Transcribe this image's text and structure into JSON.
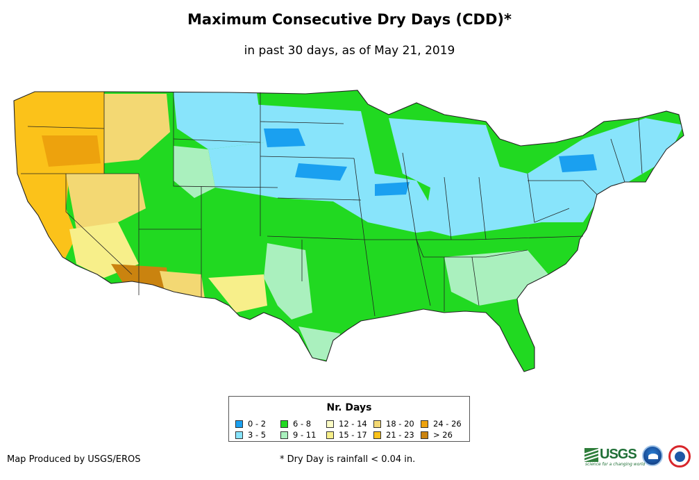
{
  "header": {
    "title": "Maximum Consecutive Dry Days (CDD)*",
    "subtitle": "in past 30 days, as of May 21, 2019"
  },
  "legend": {
    "title": "Nr. Days",
    "items": [
      {
        "label": "0 - 2",
        "color": "#1aa0f0"
      },
      {
        "label": "3 - 5",
        "color": "#88e4fb"
      },
      {
        "label": "6 - 8",
        "color": "#21d921"
      },
      {
        "label": "9 - 11",
        "color": "#aaf0be"
      },
      {
        "label": "12 - 14",
        "color": "#fbfbc5"
      },
      {
        "label": "15 - 17",
        "color": "#f7ef8a"
      },
      {
        "label": "18 - 20",
        "color": "#f3d873"
      },
      {
        "label": "21 - 23",
        "color": "#fbc21a"
      },
      {
        "label": "24 - 26",
        "color": "#eda20d"
      },
      {
        "label": "> 26",
        "color": "#ca830f"
      }
    ]
  },
  "footer": {
    "credit": "Map Produced by USGS/EROS",
    "note": "* Dry Day is rainfall < 0.04 in."
  },
  "logos": {
    "usgs_text": "USGS",
    "usgs_tagline": "science for a changing world"
  }
}
